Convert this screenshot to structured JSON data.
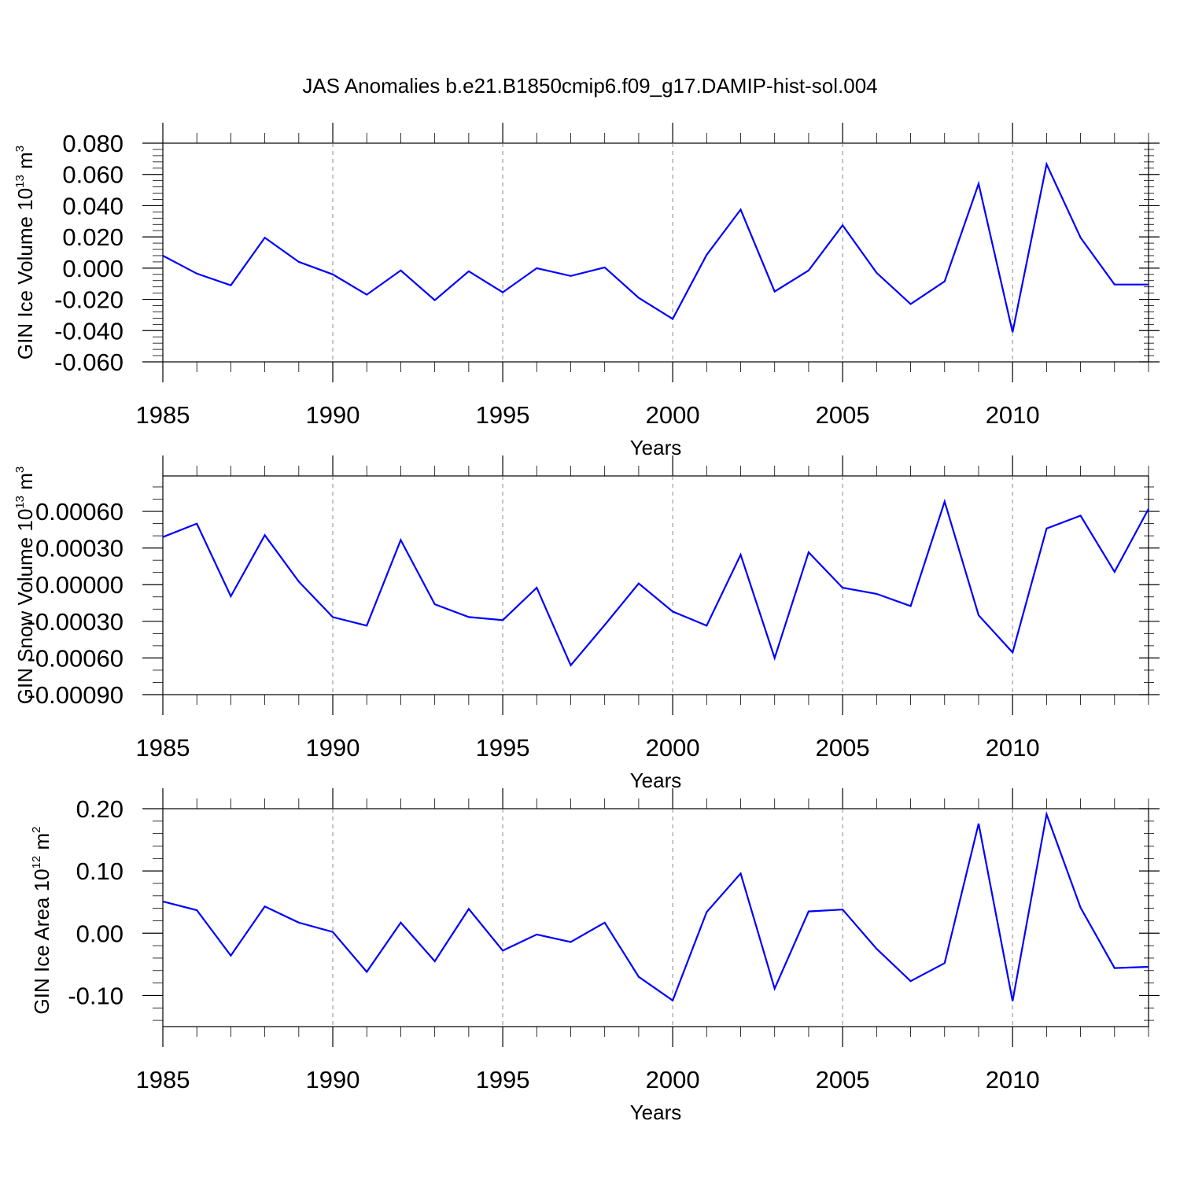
{
  "title": "JAS Anomalies b.e21.B1850cmip6.f09_g17.DAMIP-hist-sol.004",
  "colors": {
    "line": "#0000ff",
    "grid": "#888888",
    "axis": "#000000"
  },
  "chart_data": [
    {
      "type": "line",
      "ylabel": {
        "text": "GIN Ice Volume 10",
        "sup1": "13",
        "mid": " m",
        "sup2": "3"
      },
      "xlabel": "Years",
      "xlim": [
        1985,
        2014
      ],
      "ylim": [
        -0.06,
        0.08
      ],
      "xticks": [
        1985,
        1990,
        1995,
        2000,
        2005,
        2010
      ],
      "xtick_labels": [
        "1985",
        "1990",
        "1995",
        "2000",
        "2005",
        "2010"
      ],
      "yticks": [
        -0.06,
        -0.04,
        -0.02,
        0.0,
        0.02,
        0.04,
        0.06,
        0.08
      ],
      "ytick_labels": [
        "-0.060",
        "-0.040",
        "-0.020",
        "0.000",
        "0.020",
        "0.040",
        "0.060",
        "0.080"
      ],
      "yminor_step": 0.004,
      "grid": "dashed vertical at x major ticks",
      "x": [
        1985,
        1986,
        1987,
        1988,
        1989,
        1990,
        1991,
        1992,
        1993,
        1994,
        1995,
        1996,
        1997,
        1998,
        1999,
        2000,
        2001,
        2002,
        2003,
        2004,
        2005,
        2006,
        2007,
        2008,
        2009,
        2010,
        2011,
        2012,
        2013,
        2014
      ],
      "y": [
        0.008,
        -0.0035,
        -0.011,
        0.0195,
        0.004,
        -0.004,
        -0.017,
        -0.0015,
        -0.0205,
        -0.002,
        -0.0155,
        0.0,
        -0.005,
        0.0005,
        -0.019,
        -0.0325,
        0.0085,
        0.0375,
        -0.015,
        -0.0015,
        0.0275,
        -0.003,
        -0.023,
        -0.0085,
        0.054,
        -0.041,
        0.0665,
        0.0195,
        -0.0105,
        -0.0105
      ]
    },
    {
      "type": "line",
      "ylabel": {
        "text": "GIN Snow Volume 10",
        "sup1": "13",
        "mid": " m",
        "sup2": "3"
      },
      "xlabel": "Years",
      "xlim": [
        1985,
        2014
      ],
      "ylim": [
        -0.0009,
        0.00089
      ],
      "xticks": [
        1985,
        1990,
        1995,
        2000,
        2005,
        2010
      ],
      "xtick_labels": [
        "1985",
        "1990",
        "1995",
        "2000",
        "2005",
        "2010"
      ],
      "yticks": [
        -0.0009,
        -0.0006,
        -0.0003,
        0.0,
        0.0003,
        0.0006
      ],
      "ytick_labels": [
        "-0.00090",
        "-0.00060",
        "-0.00030",
        "0.00000",
        "0.00030",
        "0.00060"
      ],
      "yminor_step": 0.0001,
      "grid": "dashed vertical at x major ticks",
      "x": [
        1985,
        1986,
        1987,
        1988,
        1989,
        1990,
        1991,
        1992,
        1993,
        1994,
        1995,
        1996,
        1997,
        1998,
        1999,
        2000,
        2001,
        2002,
        2003,
        2004,
        2005,
        2006,
        2007,
        2008,
        2009,
        2010,
        2011,
        2012,
        2013,
        2014
      ],
      "y": [
        0.00039,
        0.0005,
        -9.5e-05,
        0.000405,
        2.5e-05,
        -0.000265,
        -0.000335,
        0.000365,
        -0.00016,
        -0.000265,
        -0.00029,
        -2.5e-05,
        -0.00066,
        -0.00033,
        1e-05,
        -0.00022,
        -0.000335,
        0.000245,
        -0.0006,
        0.000265,
        -2.5e-05,
        -7.5e-05,
        -0.000175,
        0.00068,
        -0.00025,
        -0.000555,
        0.00046,
        0.000565,
        0.000105,
        0.00062
      ]
    },
    {
      "type": "line",
      "ylabel": {
        "text": "GIN Ice Area 10",
        "sup1": "12",
        "mid": " m",
        "sup2": "2"
      },
      "xlabel": "Years",
      "xlim": [
        1985,
        2014
      ],
      "ylim": [
        -0.15,
        0.2
      ],
      "xticks": [
        1985,
        1990,
        1995,
        2000,
        2005,
        2010
      ],
      "xtick_labels": [
        "1985",
        "1990",
        "1995",
        "2000",
        "2005",
        "2010"
      ],
      "yticks": [
        -0.1,
        0.0,
        0.1,
        0.2
      ],
      "ytick_labels": [
        "-0.10",
        "0.00",
        "0.10",
        "0.20"
      ],
      "yminor_step": 0.02,
      "grid": "dashed vertical at x major ticks",
      "x": [
        1985,
        1986,
        1987,
        1988,
        1989,
        1990,
        1991,
        1992,
        1993,
        1994,
        1995,
        1996,
        1997,
        1998,
        1999,
        2000,
        2001,
        2002,
        2003,
        2004,
        2005,
        2006,
        2007,
        2008,
        2009,
        2010,
        2011,
        2012,
        2013,
        2014
      ],
      "y": [
        0.051,
        0.037,
        -0.036,
        0.043,
        0.017,
        0.002,
        -0.062,
        0.017,
        -0.045,
        0.039,
        -0.028,
        -0.002,
        -0.014,
        0.017,
        -0.07,
        -0.108,
        0.034,
        0.096,
        -0.089,
        0.035,
        0.038,
        -0.025,
        -0.077,
        -0.048,
        0.176,
        -0.109,
        0.191,
        0.041,
        -0.056,
        -0.054
      ]
    }
  ]
}
